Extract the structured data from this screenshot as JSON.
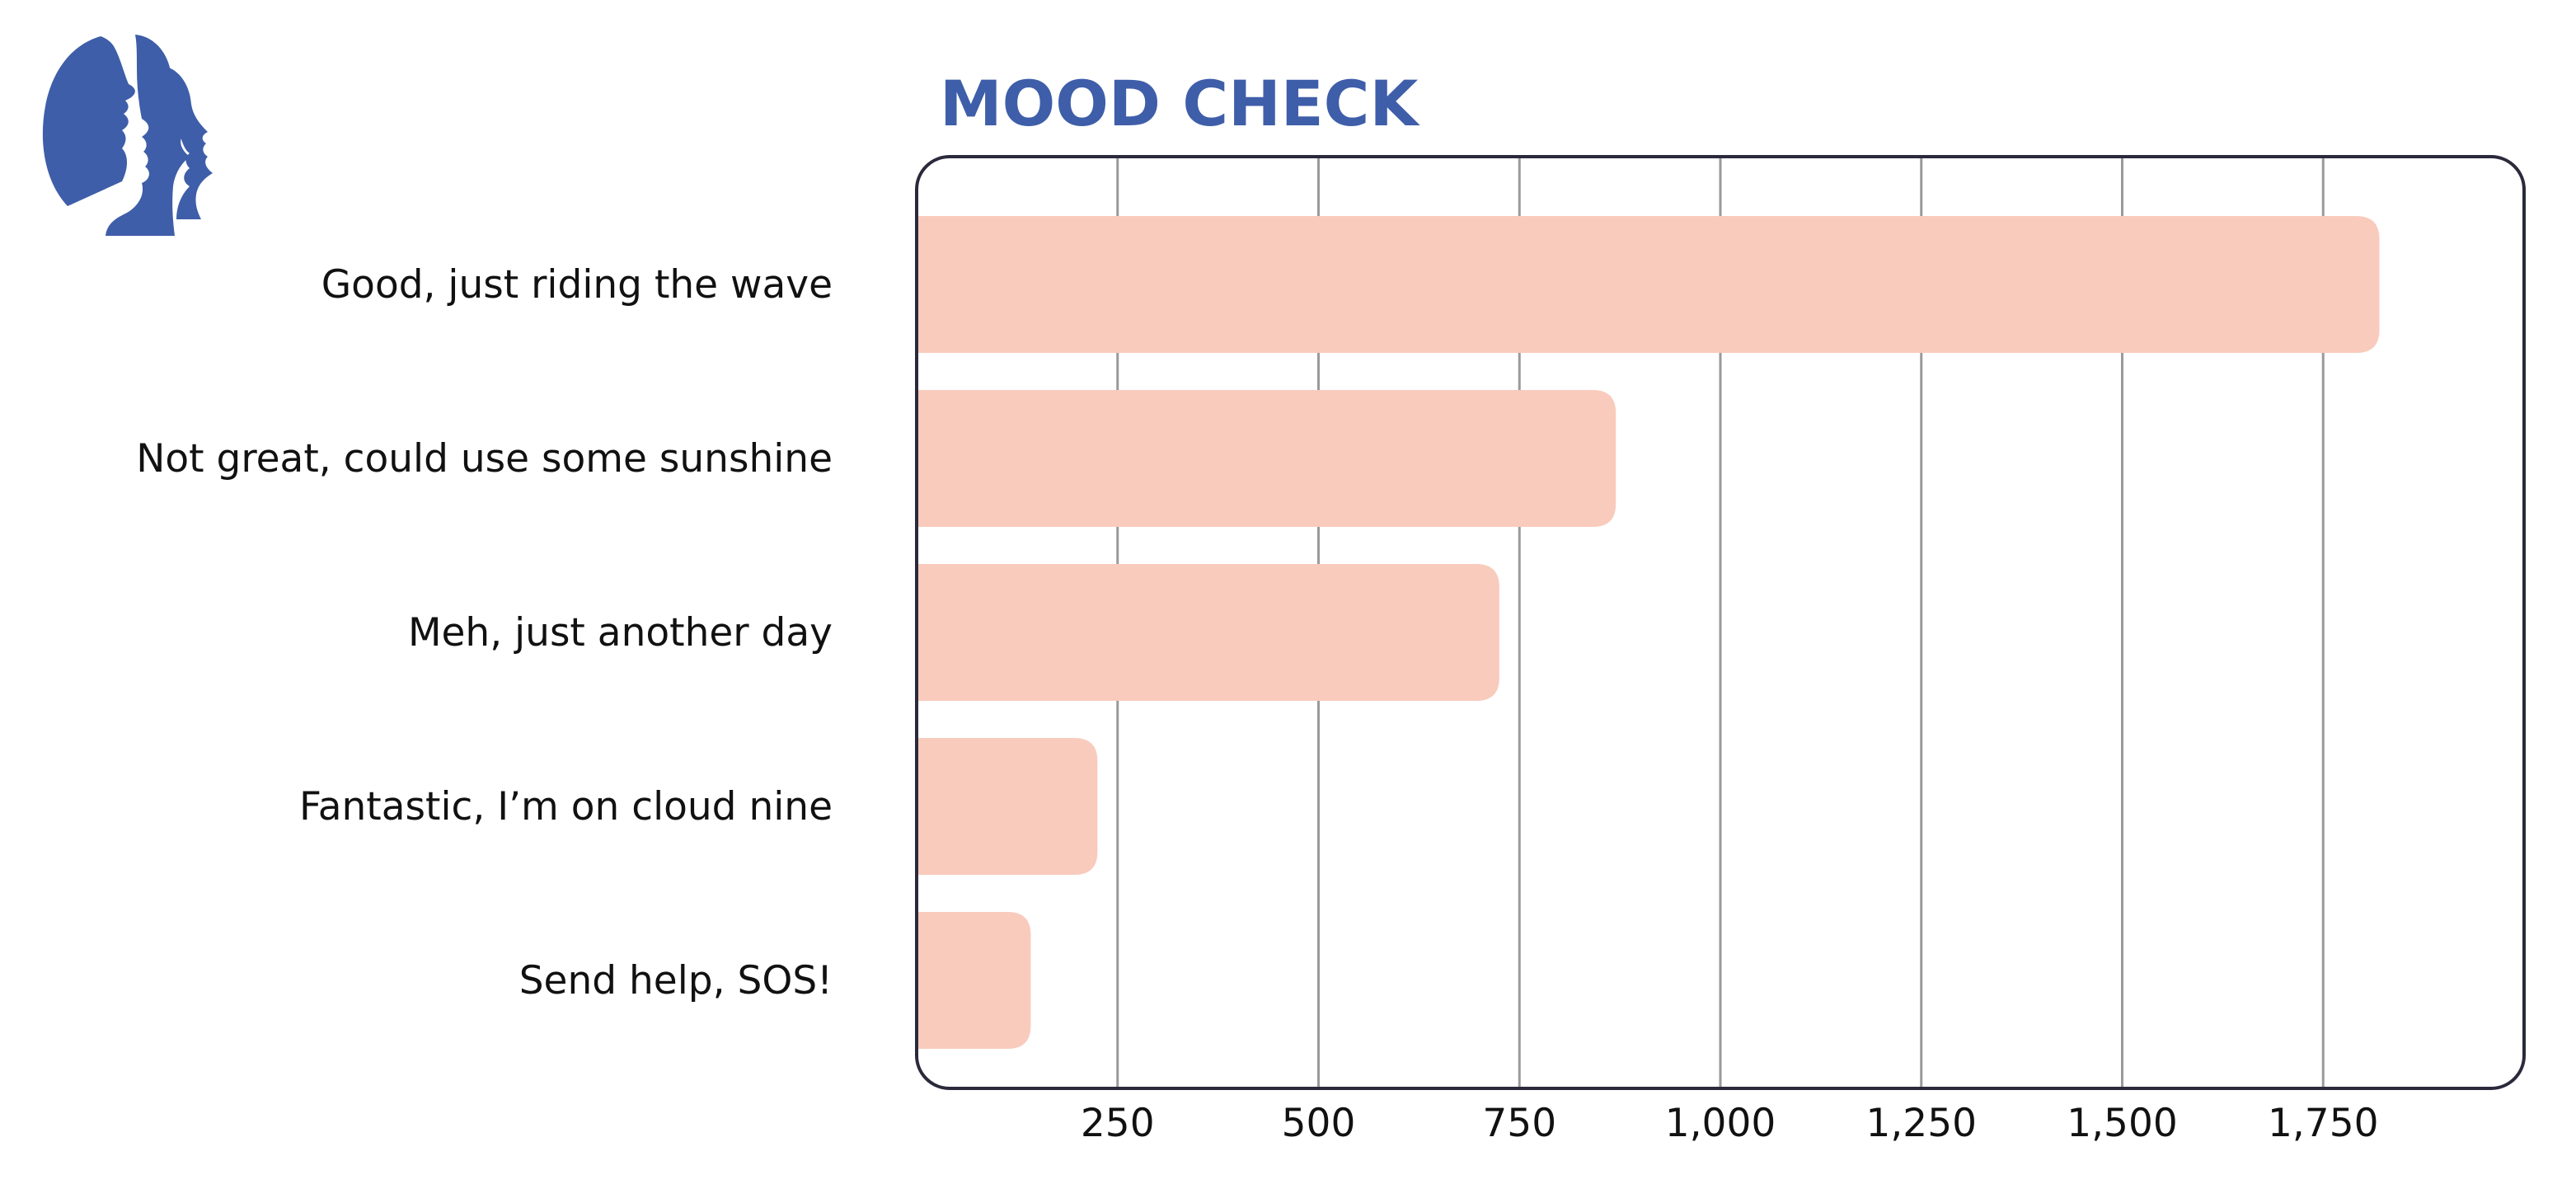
{
  "colors": {
    "brand": "#3f5ea9",
    "bar": "#f9cbbd",
    "grid": "#9a9a9a",
    "frame": "#2a2a3c",
    "text": "#111111"
  },
  "logo": {
    "icon": "faces-profile-logo-icon"
  },
  "chart_data": {
    "type": "bar",
    "orientation": "horizontal",
    "title": "MOOD CHECK",
    "xlabel": "",
    "ylabel": "",
    "categories": [
      "Good, just riding the wave",
      "Not great, could use some sunshine",
      "Meh, just another day",
      "Fantastic, I’m on cloud nine",
      "Send help, SOS!"
    ],
    "values": [
      1820,
      870,
      725,
      225,
      142
    ],
    "xlim": [
      0,
      2000
    ],
    "xticks": [
      250,
      500,
      750,
      1000,
      1250,
      1500,
      1750
    ],
    "xtick_labels": [
      "250",
      "500",
      "750",
      "1,000",
      "1,250",
      "1,500",
      "1,750"
    ],
    "grid": true
  }
}
